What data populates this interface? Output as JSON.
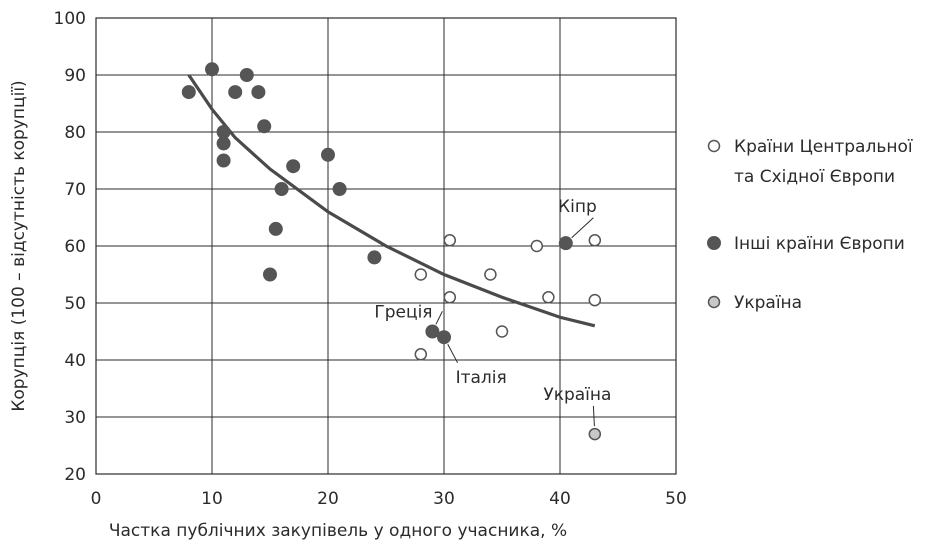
{
  "chart_data": {
    "type": "scatter",
    "xlabel": "Частка публічних закупівель у одного учасника, %",
    "ylabel": "Корупція (100 – відсутність корупції)",
    "xlim": [
      0,
      50
    ],
    "ylim": [
      20,
      100
    ],
    "x_ticks": [
      0,
      10,
      20,
      30,
      40,
      50
    ],
    "y_ticks": [
      20,
      30,
      40,
      50,
      60,
      70,
      80,
      90,
      100
    ],
    "grid": true,
    "legend_position": "right",
    "series": [
      {
        "name": "Країни Центральної та Східної Європи",
        "legend_lines": [
          "Країни Центральної",
          "та Східної Європи"
        ],
        "marker": "open-circle",
        "color": "#ffffff",
        "points": [
          {
            "x": 28,
            "y": 55
          },
          {
            "x": 30.5,
            "y": 61
          },
          {
            "x": 30.5,
            "y": 51
          },
          {
            "x": 34,
            "y": 55
          },
          {
            "x": 35,
            "y": 45
          },
          {
            "x": 38,
            "y": 60
          },
          {
            "x": 39,
            "y": 51
          },
          {
            "x": 43,
            "y": 61
          },
          {
            "x": 43,
            "y": 50.5
          },
          {
            "x": 28,
            "y": 41
          }
        ]
      },
      {
        "name": "Інші країни Європи",
        "legend_lines": [
          "Інші країни Європи"
        ],
        "marker": "filled-circle",
        "color": "#555555",
        "points": [
          {
            "x": 8,
            "y": 87
          },
          {
            "x": 10,
            "y": 91
          },
          {
            "x": 11,
            "y": 80
          },
          {
            "x": 11,
            "y": 78
          },
          {
            "x": 11,
            "y": 75
          },
          {
            "x": 12,
            "y": 87
          },
          {
            "x": 13,
            "y": 90
          },
          {
            "x": 14,
            "y": 87
          },
          {
            "x": 14.5,
            "y": 81
          },
          {
            "x": 16,
            "y": 70
          },
          {
            "x": 17,
            "y": 74
          },
          {
            "x": 15.5,
            "y": 63
          },
          {
            "x": 15,
            "y": 55
          },
          {
            "x": 20,
            "y": 76
          },
          {
            "x": 21,
            "y": 70
          },
          {
            "x": 24,
            "y": 58
          },
          {
            "x": 29,
            "y": 45
          },
          {
            "x": 30,
            "y": 44
          },
          {
            "x": 40.5,
            "y": 60.5
          }
        ]
      },
      {
        "name": "Україна",
        "legend_lines": [
          "Україна"
        ],
        "marker": "grey-circle",
        "color": "#c8c8c8",
        "points": [
          {
            "x": 43,
            "y": 27
          }
        ]
      }
    ],
    "trend_line": [
      {
        "x": 8,
        "y": 90
      },
      {
        "x": 10,
        "y": 84
      },
      {
        "x": 12,
        "y": 79
      },
      {
        "x": 15,
        "y": 73.5
      },
      {
        "x": 20,
        "y": 66
      },
      {
        "x": 25,
        "y": 60
      },
      {
        "x": 30,
        "y": 55
      },
      {
        "x": 35,
        "y": 51
      },
      {
        "x": 40,
        "y": 47.5
      },
      {
        "x": 43,
        "y": 46
      }
    ],
    "annotations": [
      {
        "text": "Кіпр",
        "point": {
          "x": 40.5,
          "y": 60.5
        },
        "label_at": {
          "x": 41.5,
          "y": 66
        },
        "anchor": "middle"
      },
      {
        "text": "Греція",
        "point": {
          "x": 29,
          "y": 45
        },
        "label_at": {
          "x": 24,
          "y": 47.5
        },
        "anchor": "start"
      },
      {
        "text": "Італія",
        "point": {
          "x": 30,
          "y": 44
        },
        "label_at": {
          "x": 31,
          "y": 36
        },
        "anchor": "start"
      },
      {
        "text": "Україна",
        "point": {
          "x": 43,
          "y": 27
        },
        "label_at": {
          "x": 41.5,
          "y": 33
        },
        "anchor": "middle"
      }
    ]
  }
}
